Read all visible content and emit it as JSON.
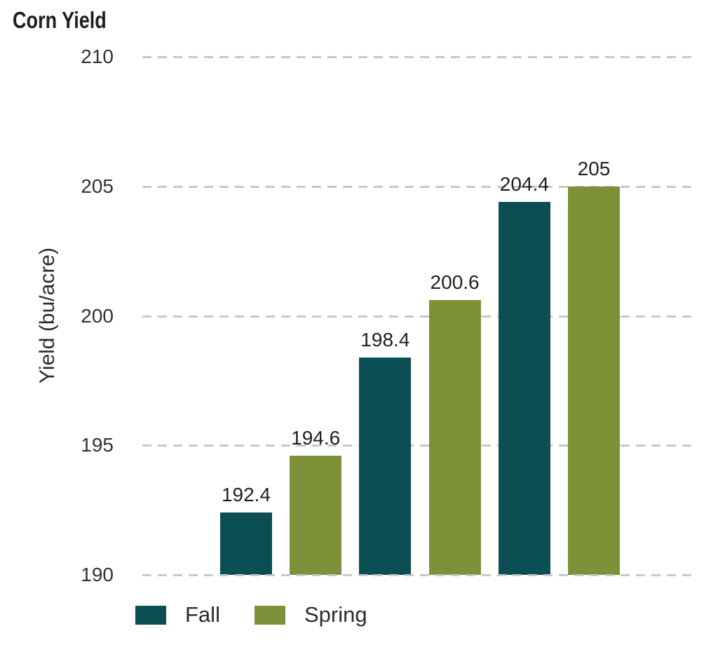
{
  "title": "Corn Yield",
  "colors": {
    "fall": "#0b4f55",
    "spring": "#7c9138",
    "gridline": "#c8c8c8",
    "text": "#2b2b2b"
  },
  "chart_data": {
    "type": "bar",
    "title": "Corn Yield",
    "xlabel": "",
    "ylabel": "Yield (bu/acre)",
    "ylim": [
      190,
      210
    ],
    "yticks": [
      "210",
      "205",
      "200",
      "195",
      "190"
    ],
    "ytick_values": [
      210,
      205,
      200,
      195,
      190
    ],
    "grid": "horizontal-dashed",
    "legend_position": "bottom",
    "grouping": "pairs of Fall/Spring bars, no x category labels shown",
    "series": [
      {
        "name": "Fall",
        "color": "#0b4f55",
        "values": [
          192.4,
          198.4,
          204.4
        ],
        "labels": [
          "192.4",
          "198.4",
          "204.4"
        ]
      },
      {
        "name": "Spring",
        "color": "#7c9138",
        "values": [
          194.6,
          200.6,
          205
        ],
        "labels": [
          "194.6",
          "200.6",
          "205"
        ]
      }
    ]
  },
  "legend": {
    "items": [
      {
        "label": "Fall",
        "color": "#0b4f55"
      },
      {
        "label": "Spring",
        "color": "#7c9138"
      }
    ]
  }
}
